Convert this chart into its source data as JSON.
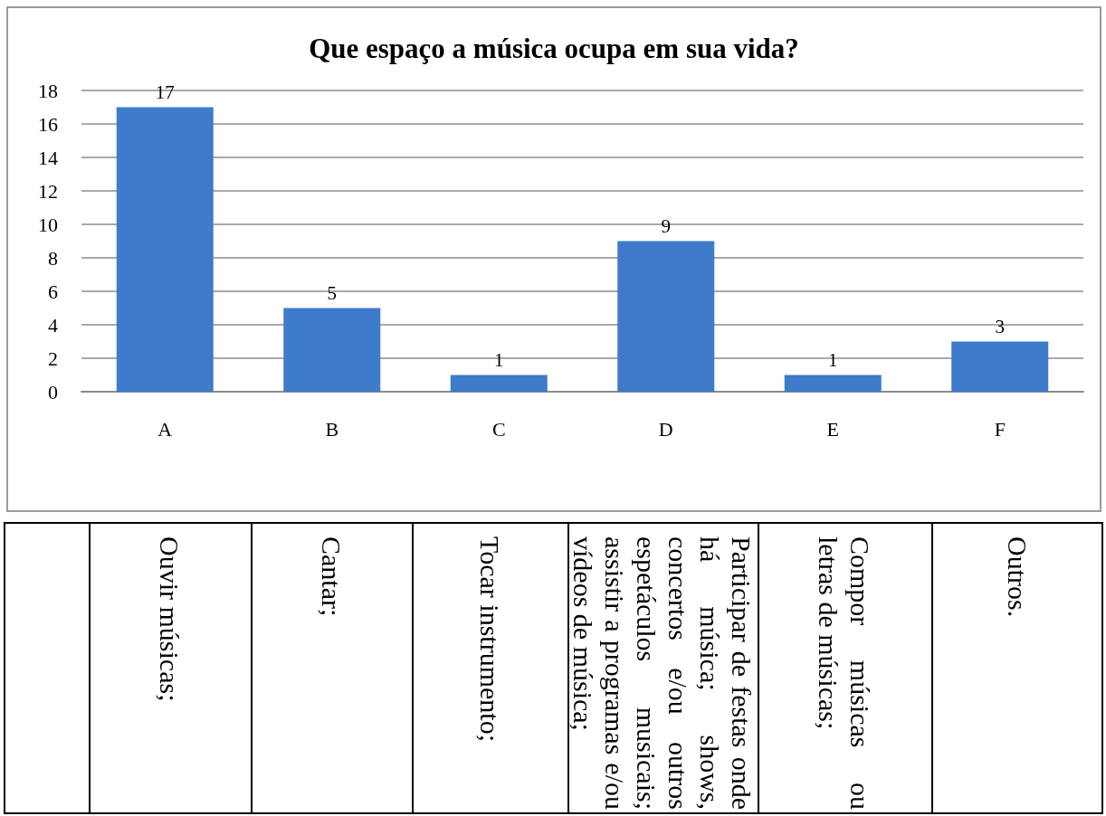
{
  "chart_data": {
    "type": "bar",
    "title": "Que espaço a música ocupa em sua vida?",
    "categories": [
      "A",
      "B",
      "C",
      "D",
      "E",
      "F"
    ],
    "values": [
      17,
      5,
      1,
      9,
      1,
      3
    ],
    "color": "#3e7bcb",
    "ylim": [
      0,
      18
    ],
    "yticks": [
      0,
      2,
      4,
      6,
      8,
      10,
      12,
      14,
      16,
      18
    ],
    "grid": "y",
    "data_labels": true,
    "annotations": [
      "Ouvir músicas;",
      "Cantar;",
      "Tocar instrumento;",
      "Participar de festas onde há música; shows, concertos e/ou outros espetáculos musicais; assistir a programas e/ou vídeos de música;",
      "Compor músicas ou letras de músicas;",
      "Outros."
    ]
  }
}
